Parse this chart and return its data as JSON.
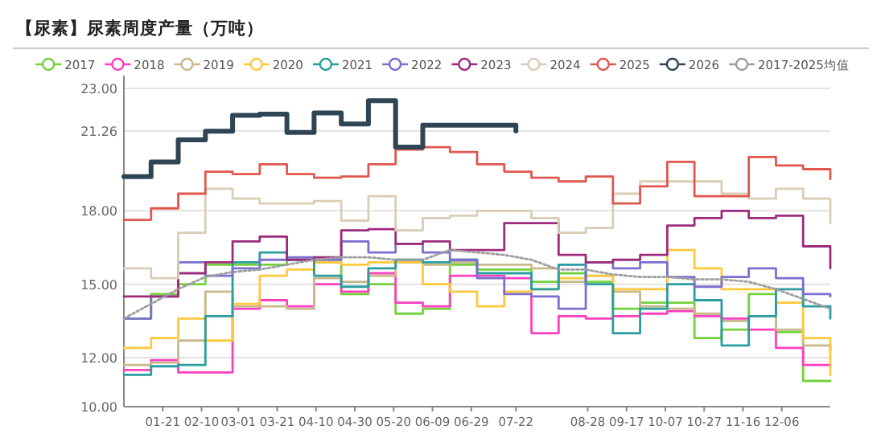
{
  "chart_data": {
    "type": "step",
    "title": "【尿素】尿素周度产量（万吨）",
    "x": [
      "--01-01",
      "--01-15",
      "--01-29",
      "--02-12",
      "--02-26",
      "--03-12",
      "--03-26",
      "--04-09",
      "--04-23",
      "--05-07",
      "--05-21",
      "--06-04",
      "--06-18",
      "--07-02",
      "--07-16",
      "--07-30",
      "--08-13",
      "--08-27",
      "--09-10",
      "--09-24",
      "--10-08",
      "--10-22",
      "--11-05",
      "--11-19",
      "--12-03",
      "--12-17",
      "--12-31"
    ],
    "xlim": [
      "--01-01",
      "--12-31"
    ],
    "xticks": [
      {
        "value": "--01-21",
        "label": "01-21"
      },
      {
        "value": "--02-10",
        "label": "02-10"
      },
      {
        "value": "--03-01",
        "label": "03-01"
      },
      {
        "value": "--03-21",
        "label": "03-21"
      },
      {
        "value": "--04-10",
        "label": "04-10"
      },
      {
        "value": "--04-30",
        "label": "04-30"
      },
      {
        "value": "--05-20",
        "label": "05-20"
      },
      {
        "value": "--06-09",
        "label": "06-09"
      },
      {
        "value": "--06-29",
        "label": "06-29"
      },
      {
        "value": "--07-22",
        "label": "07-22"
      },
      {
        "value": "--08-28",
        "label": "08-28"
      },
      {
        "value": "--09-17",
        "label": "09-17"
      },
      {
        "value": "--10-07",
        "label": "10-07"
      },
      {
        "value": "--10-27",
        "label": "10-27"
      },
      {
        "value": "--11-16",
        "label": "11-16"
      },
      {
        "value": "--12-06",
        "label": "12-06"
      }
    ],
    "ylim": [
      10,
      23
    ],
    "yticks": [
      {
        "value": 10,
        "label": "10.00"
      },
      {
        "value": 12,
        "label": "12.00"
      },
      {
        "value": 15,
        "label": "15.00"
      },
      {
        "value": 18,
        "label": "18.00"
      },
      {
        "value": 21.26,
        "label": "21.26"
      },
      {
        "value": 23,
        "label": "23.00"
      }
    ],
    "grid": "y",
    "legend": "top",
    "series": [
      {
        "name": "2017",
        "color": "#73d13d",
        "values": [
          13.6,
          14.6,
          15.0,
          15.8,
          15.8,
          15.8,
          16.0,
          15.9,
          14.6,
          15.0,
          13.8,
          14.0,
          15.8,
          15.6,
          15.6,
          15.1,
          15.45,
          15.1,
          14.0,
          14.25,
          14.25,
          12.8,
          13.15,
          14.6,
          13.05,
          11.05,
          11.05
        ]
      },
      {
        "name": "2018",
        "color": "#ff3fbf",
        "values": [
          11.5,
          11.9,
          11.4,
          11.4,
          14.0,
          14.35,
          14.1,
          15.0,
          14.7,
          15.45,
          14.25,
          14.1,
          15.35,
          15.35,
          15.25,
          13.0,
          13.7,
          13.6,
          13.7,
          13.8,
          13.9,
          13.7,
          13.6,
          13.15,
          12.4,
          11.7,
          11.7
        ]
      },
      {
        "name": "2019",
        "color": "#c8b88a",
        "values": [
          11.7,
          11.8,
          12.7,
          14.7,
          14.1,
          14.1,
          14.0,
          15.25,
          15.1,
          15.35,
          15.9,
          15.8,
          15.9,
          15.8,
          15.8,
          15.65,
          15.1,
          15.35,
          14.7,
          14.1,
          14.0,
          13.8,
          13.5,
          13.7,
          13.15,
          12.5,
          12.3
        ]
      },
      {
        "name": "2020",
        "color": "#ffc83d",
        "values": [
          12.4,
          12.8,
          13.6,
          12.7,
          14.2,
          15.35,
          15.6,
          15.9,
          15.8,
          15.9,
          15.9,
          15.0,
          14.7,
          14.1,
          14.7,
          14.8,
          15.25,
          15.35,
          14.8,
          14.8,
          16.4,
          15.65,
          14.8,
          14.8,
          14.25,
          12.8,
          11.3
        ]
      },
      {
        "name": "2021",
        "color": "#2a9d9f",
        "values": [
          11.3,
          11.65,
          11.7,
          13.7,
          15.9,
          16.3,
          16.0,
          15.35,
          14.9,
          15.65,
          16.0,
          15.9,
          16.0,
          15.45,
          15.45,
          14.8,
          15.8,
          15.0,
          13.0,
          14.0,
          15.0,
          14.35,
          12.5,
          13.7,
          14.8,
          14.1,
          13.6
        ]
      },
      {
        "name": "2022",
        "color": "#7b6fd0",
        "values": [
          13.6,
          14.5,
          15.9,
          15.35,
          15.65,
          16.0,
          16.1,
          16.0,
          16.75,
          16.3,
          16.65,
          16.3,
          16.0,
          15.25,
          14.6,
          14.5,
          14.0,
          15.9,
          15.65,
          15.9,
          15.3,
          14.9,
          15.3,
          15.65,
          15.25,
          14.6,
          14.5
        ]
      },
      {
        "name": "2023",
        "color": "#9c2b7c",
        "values": [
          14.5,
          14.5,
          15.45,
          15.9,
          16.75,
          16.95,
          16.0,
          16.1,
          17.2,
          17.25,
          16.65,
          16.75,
          16.4,
          16.4,
          17.5,
          17.5,
          16.2,
          15.9,
          16.0,
          16.2,
          17.4,
          17.7,
          18.0,
          17.7,
          17.8,
          16.55,
          15.65
        ]
      },
      {
        "name": "2024",
        "color": "#d9cdb5",
        "values": [
          15.65,
          15.25,
          17.1,
          18.9,
          18.5,
          18.3,
          18.3,
          18.4,
          17.6,
          18.6,
          17.2,
          17.7,
          17.8,
          18.0,
          18.0,
          17.7,
          17.1,
          17.3,
          18.7,
          19.2,
          19.2,
          19.2,
          18.7,
          18.5,
          18.9,
          18.5,
          17.5
        ]
      },
      {
        "name": "2025",
        "color": "#e0574e",
        "values": [
          17.63,
          18.1,
          18.7,
          19.6,
          19.5,
          19.9,
          19.5,
          19.35,
          19.4,
          19.9,
          20.5,
          20.6,
          20.4,
          19.9,
          19.6,
          19.35,
          19.2,
          19.4,
          18.3,
          19.0,
          20.0,
          18.6,
          18.6,
          20.2,
          19.85,
          19.7,
          19.3
        ]
      },
      {
        "name": "2026",
        "color": "#2f4554",
        "x": [
          "--01-01",
          "--01-15",
          "--01-29",
          "--02-12",
          "--02-26",
          "--03-12",
          "--03-26",
          "--04-09",
          "--04-23",
          "--05-07",
          "--05-21",
          "--06-04",
          "--06-18",
          "--07-02",
          "--07-16",
          "--07-22"
        ],
        "values": [
          19.4,
          20.0,
          20.9,
          21.25,
          21.9,
          21.95,
          21.2,
          22.0,
          21.55,
          22.5,
          20.6,
          21.5,
          21.5,
          21.5,
          21.5,
          21.26
        ]
      },
      {
        "name": "2017-2025均值",
        "color": "#9e9e9e",
        "type": "line",
        "line_style": "dotted",
        "values": [
          13.6,
          14.2,
          14.8,
          15.3,
          15.5,
          15.6,
          15.8,
          16.0,
          16.1,
          16.1,
          16.0,
          16.0,
          16.4,
          16.3,
          16.2,
          16.0,
          15.6,
          15.6,
          15.4,
          15.3,
          15.3,
          15.2,
          15.2,
          15.1,
          14.8,
          14.4,
          14.0
        ]
      }
    ]
  }
}
